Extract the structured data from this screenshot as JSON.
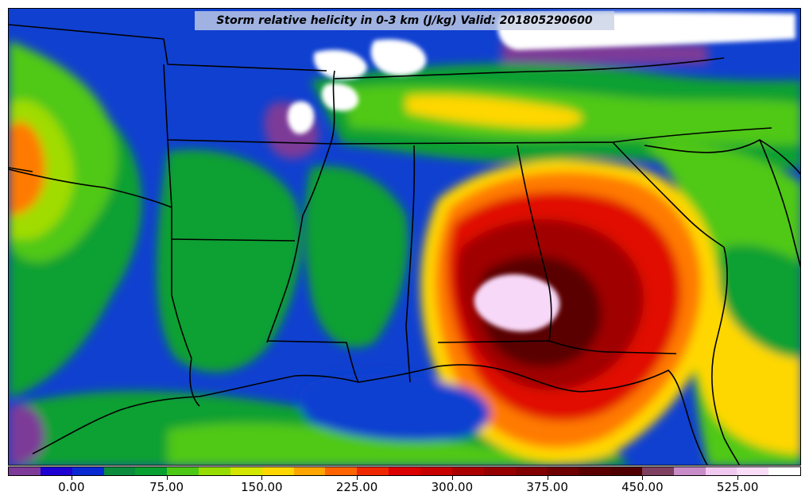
{
  "title": "Storm relative helicity in 0-3 km (J/kg) Valid: 201805290600",
  "colorbar": {
    "min": -50,
    "max": 575,
    "step": 25,
    "tick_labels": [
      "0.00",
      "75.00",
      "150.00",
      "225.00",
      "300.00",
      "375.00",
      "450.00",
      "525.00"
    ],
    "tick_values": [
      0,
      75,
      150,
      225,
      300,
      375,
      450,
      525
    ],
    "colors": [
      "#7d3a98",
      "#1e00d2",
      "#0a28d2",
      "#0a8c3c",
      "#08a030",
      "#4cc814",
      "#96dc00",
      "#d2e600",
      "#ffd700",
      "#ffa500",
      "#ff6400",
      "#f02800",
      "#dc0000",
      "#c80000",
      "#aa0000",
      "#960000",
      "#820000",
      "#6e0000",
      "#5a0000",
      "#500000",
      "#7d4060",
      "#c88cc8",
      "#f0c8f0",
      "#f8dcf8",
      "#ffffff"
    ]
  },
  "map": {
    "region": "Southeastern United States and Gulf of Mexico",
    "colors": {
      "background": "#1040d0",
      "green": "#10a030",
      "light_green": "#50c818",
      "yellow_green": "#a0dc00",
      "yellow": "#ffd700",
      "orange": "#ff7a00",
      "red": "#e01000",
      "dark_red": "#a00000",
      "darker_red": "#5a0000",
      "pink": "#f8d8f8",
      "purple": "#7d3a98",
      "white": "#ffffff",
      "border": "#000000"
    }
  }
}
